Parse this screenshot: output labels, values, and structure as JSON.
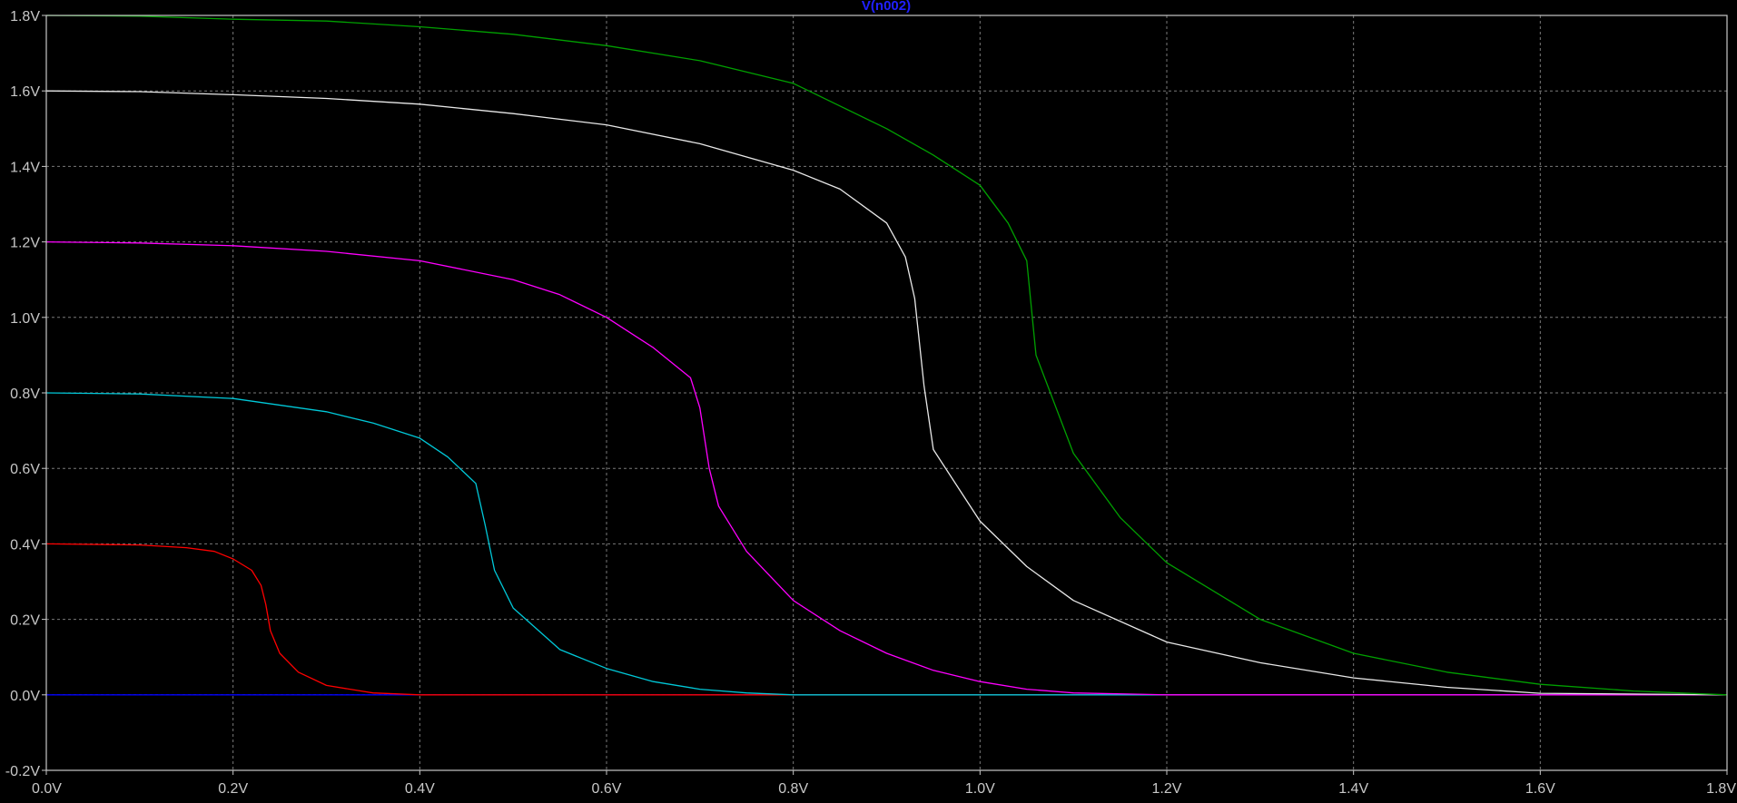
{
  "chart_data": {
    "type": "line",
    "title": "V(n002)",
    "xlabel": "",
    "ylabel": "",
    "xlim": [
      0.0,
      1.8
    ],
    "ylim": [
      -0.2,
      1.8
    ],
    "grid": true,
    "x_ticks": [
      "0.0V",
      "0.2V",
      "0.4V",
      "0.6V",
      "0.8V",
      "1.0V",
      "1.2V",
      "1.4V",
      "1.6V",
      "1.8V"
    ],
    "y_ticks": [
      "1.8V",
      "1.6V",
      "1.4V",
      "1.2V",
      "1.0V",
      "0.8V",
      "0.6V",
      "0.4V",
      "0.2V",
      "0.0V",
      "-0.2V"
    ],
    "colors": {
      "background": "#000000",
      "frame": "#c8c8c8",
      "grid": "#7a7a7a",
      "title": "#2020ff"
    },
    "series": [
      {
        "color": "#0000ff",
        "points": [
          [
            0.0,
            0.0
          ],
          [
            1.8,
            0.0
          ]
        ]
      },
      {
        "color": "#ff0000",
        "points": [
          [
            0.0,
            0.4
          ],
          [
            0.1,
            0.397
          ],
          [
            0.15,
            0.39
          ],
          [
            0.18,
            0.38
          ],
          [
            0.2,
            0.36
          ],
          [
            0.22,
            0.33
          ],
          [
            0.23,
            0.29
          ],
          [
            0.235,
            0.24
          ],
          [
            0.24,
            0.17
          ],
          [
            0.25,
            0.11
          ],
          [
            0.27,
            0.06
          ],
          [
            0.3,
            0.025
          ],
          [
            0.35,
            0.005
          ],
          [
            0.4,
            0.0
          ],
          [
            1.8,
            0.0
          ]
        ]
      },
      {
        "color": "#00c8d8",
        "points": [
          [
            0.0,
            0.8
          ],
          [
            0.1,
            0.797
          ],
          [
            0.2,
            0.785
          ],
          [
            0.3,
            0.75
          ],
          [
            0.35,
            0.72
          ],
          [
            0.4,
            0.68
          ],
          [
            0.43,
            0.63
          ],
          [
            0.46,
            0.56
          ],
          [
            0.47,
            0.45
          ],
          [
            0.48,
            0.33
          ],
          [
            0.5,
            0.23
          ],
          [
            0.55,
            0.12
          ],
          [
            0.6,
            0.07
          ],
          [
            0.65,
            0.035
          ],
          [
            0.7,
            0.015
          ],
          [
            0.75,
            0.005
          ],
          [
            0.8,
            0.0
          ],
          [
            1.8,
            0.0
          ]
        ]
      },
      {
        "color": "#ff00ff",
        "points": [
          [
            0.0,
            1.2
          ],
          [
            0.1,
            1.197
          ],
          [
            0.2,
            1.19
          ],
          [
            0.3,
            1.175
          ],
          [
            0.4,
            1.15
          ],
          [
            0.5,
            1.1
          ],
          [
            0.55,
            1.06
          ],
          [
            0.6,
            1.0
          ],
          [
            0.65,
            0.92
          ],
          [
            0.69,
            0.84
          ],
          [
            0.7,
            0.76
          ],
          [
            0.71,
            0.6
          ],
          [
            0.72,
            0.5
          ],
          [
            0.75,
            0.38
          ],
          [
            0.8,
            0.25
          ],
          [
            0.85,
            0.17
          ],
          [
            0.9,
            0.11
          ],
          [
            0.95,
            0.065
          ],
          [
            1.0,
            0.035
          ],
          [
            1.05,
            0.015
          ],
          [
            1.1,
            0.005
          ],
          [
            1.2,
            0.0
          ],
          [
            1.8,
            0.0
          ]
        ]
      },
      {
        "color": "#e8e8e8",
        "points": [
          [
            0.0,
            1.6
          ],
          [
            0.1,
            1.598
          ],
          [
            0.2,
            1.59
          ],
          [
            0.3,
            1.58
          ],
          [
            0.4,
            1.565
          ],
          [
            0.5,
            1.54
          ],
          [
            0.6,
            1.51
          ],
          [
            0.7,
            1.46
          ],
          [
            0.8,
            1.39
          ],
          [
            0.85,
            1.34
          ],
          [
            0.9,
            1.25
          ],
          [
            0.92,
            1.16
          ],
          [
            0.93,
            1.05
          ],
          [
            0.94,
            0.82
          ],
          [
            0.95,
            0.65
          ],
          [
            1.0,
            0.46
          ],
          [
            1.05,
            0.34
          ],
          [
            1.1,
            0.25
          ],
          [
            1.2,
            0.14
          ],
          [
            1.3,
            0.085
          ],
          [
            1.4,
            0.045
          ],
          [
            1.5,
            0.02
          ],
          [
            1.6,
            0.004
          ],
          [
            1.8,
            0.0
          ]
        ]
      },
      {
        "color": "#00a000",
        "points": [
          [
            0.0,
            1.8
          ],
          [
            0.1,
            1.798
          ],
          [
            0.2,
            1.79
          ],
          [
            0.3,
            1.785
          ],
          [
            0.4,
            1.77
          ],
          [
            0.5,
            1.75
          ],
          [
            0.6,
            1.72
          ],
          [
            0.7,
            1.68
          ],
          [
            0.8,
            1.62
          ],
          [
            0.9,
            1.5
          ],
          [
            0.95,
            1.43
          ],
          [
            1.0,
            1.35
          ],
          [
            1.03,
            1.25
          ],
          [
            1.05,
            1.15
          ],
          [
            1.06,
            0.9
          ],
          [
            1.1,
            0.64
          ],
          [
            1.15,
            0.47
          ],
          [
            1.2,
            0.35
          ],
          [
            1.3,
            0.2
          ],
          [
            1.4,
            0.11
          ],
          [
            1.5,
            0.06
          ],
          [
            1.6,
            0.028
          ],
          [
            1.7,
            0.01
          ],
          [
            1.8,
            0.0
          ]
        ]
      }
    ]
  }
}
